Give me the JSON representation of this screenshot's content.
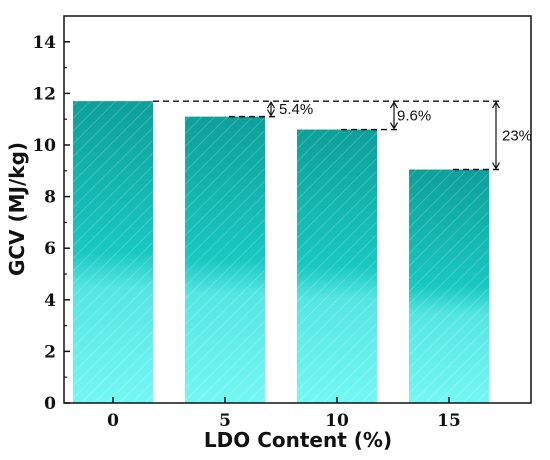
{
  "chart_data": {
    "type": "bar",
    "categories": [
      "0",
      "5",
      "10",
      "15"
    ],
    "values": [
      11.7,
      11.1,
      10.6,
      9.05
    ],
    "xlabel": "LDO Content (%)",
    "ylabel": "GCV (MJ/kg)",
    "ylim": [
      0,
      15
    ],
    "yticks": [
      "0",
      "2",
      "4",
      "6",
      "8",
      "10",
      "12",
      "14"
    ],
    "grid": false,
    "bar_fill_top": "#0fa8a2",
    "bar_fill_bottom": "#66f2ee",
    "hatch": "diagonal",
    "annotations": [
      {
        "label": "5.4%",
        "from": 11.75,
        "to": 11.1,
        "category": "5"
      },
      {
        "label": "9.6%",
        "from": 11.75,
        "to": 10.6,
        "category": "10"
      },
      {
        "label": "23%",
        "from": 11.75,
        "to": 9.05,
        "category": "15"
      }
    ]
  }
}
